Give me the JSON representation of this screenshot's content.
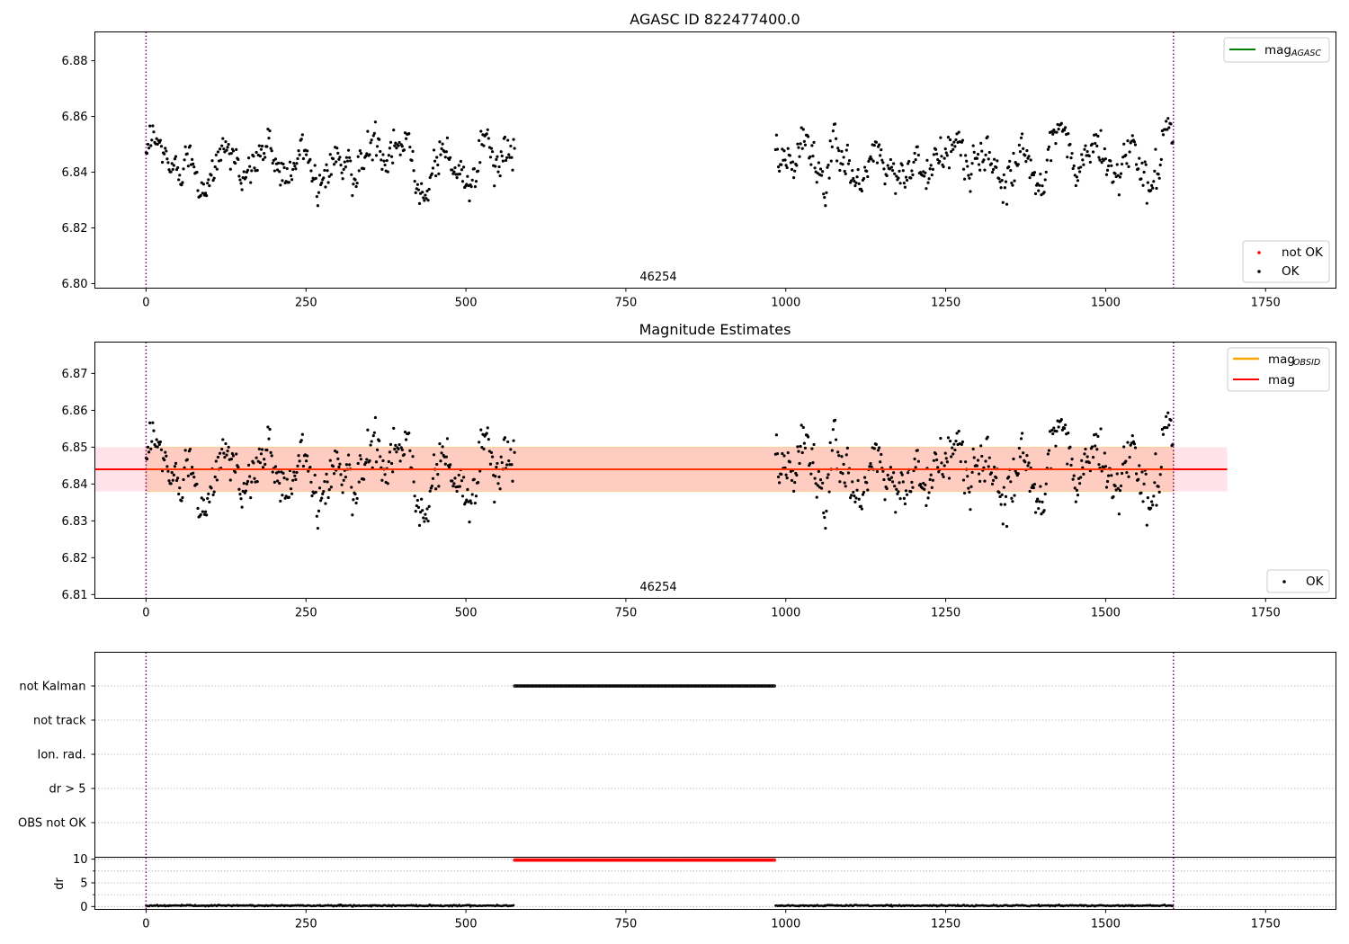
{
  "figure": {
    "colors": {
      "ok": "#000000",
      "not_ok": "#ff0000",
      "mag_agasc": "#008000",
      "mag_obsid": "#ffa500",
      "mag": "#ff0000",
      "obs_band": "#ffa07a",
      "mean_band": "#ffc0cb",
      "obs_boundary": "#800080",
      "grid": "#b0b0b0",
      "flag": "#000000",
      "dr_high": "#ff0000"
    }
  },
  "chart_data": [
    {
      "id": "agasc",
      "type": "scatter",
      "title": "AGASC ID 822477400.0",
      "xlim": [
        -80,
        1860
      ],
      "ylim": [
        6.79838,
        6.89036
      ],
      "x_ticks": [
        0,
        250,
        500,
        750,
        1000,
        1250,
        1500,
        1750
      ],
      "y_ticks": [
        6.8,
        6.82,
        6.84,
        6.86,
        6.88
      ],
      "y_tick_labels": [
        "6.80",
        "6.82",
        "6.84",
        "6.86",
        "6.88"
      ],
      "obs_boundaries": [
        0,
        1606
      ],
      "obs_label": {
        "text": "46254",
        "x": 803
      },
      "legend_upper": [
        {
          "label": "mag",
          "sub": "AGASC",
          "kind": "line",
          "color": "#008000"
        }
      ],
      "legend_lower": [
        {
          "label": "not OK",
          "kind": "point",
          "color": "#ff0000"
        },
        {
          "label": "OK",
          "kind": "point",
          "color": "#000000"
        }
      ],
      "series": [
        {
          "label": "OK",
          "kind": "scatter",
          "segments": [
            [
              0,
              576
            ],
            [
              984,
              1606
            ]
          ],
          "mean": 6.844,
          "spread": 0.0058,
          "min": 6.828,
          "max": 6.861
        },
        {
          "label": "not OK",
          "kind": "scatter",
          "values": []
        }
      ]
    },
    {
      "id": "estimates",
      "type": "scatter",
      "title": "Magnitude Estimates",
      "xlim": [
        -80,
        1860
      ],
      "ylim": [
        6.80898,
        6.87852
      ],
      "x_ticks": [
        0,
        250,
        500,
        750,
        1000,
        1250,
        1500,
        1750
      ],
      "y_ticks": [
        6.81,
        6.82,
        6.83,
        6.84,
        6.85,
        6.86,
        6.87
      ],
      "y_tick_labels": [
        "6.81",
        "6.82",
        "6.83",
        "6.84",
        "6.85",
        "6.86",
        "6.87"
      ],
      "obs_boundaries": [
        0,
        1606
      ],
      "obs_label": {
        "text": "46254",
        "x": 803
      },
      "mag": 6.844,
      "mag_band": {
        "x": [
          -80,
          1690
        ],
        "y": [
          6.838,
          6.85
        ]
      },
      "obs_band": {
        "x": [
          0,
          1606
        ],
        "y": [
          6.838,
          6.85
        ]
      },
      "legend_upper": [
        {
          "label": "mag",
          "sub": "OBSID",
          "kind": "line",
          "color": "#ffa500"
        },
        {
          "label": "mag",
          "sub": "",
          "kind": "line",
          "color": "#ff0000"
        }
      ],
      "legend_lower": [
        {
          "label": "OK",
          "kind": "point",
          "color": "#000000"
        }
      ],
      "series": [
        {
          "label": "OK",
          "kind": "scatter",
          "segments": [
            [
              0,
              576
            ],
            [
              984,
              1606
            ]
          ],
          "mean": 6.844,
          "spread": 0.0058,
          "min": 6.828,
          "max": 6.861
        }
      ]
    },
    {
      "id": "flags",
      "type": "scatter",
      "xlim": [
        -80,
        1860
      ],
      "categories": [
        "not Kalman",
        "not track",
        "Ion. rad.",
        "dr > 5",
        "OBS not OK"
      ],
      "obs_boundaries": [
        0,
        1606
      ],
      "series": [
        {
          "category": "not Kalman",
          "x_range": [
            576,
            984
          ]
        },
        {
          "category": "not track",
          "x_range": []
        },
        {
          "category": "Ion. rad.",
          "x_range": []
        },
        {
          "category": "dr > 5",
          "x_range": []
        },
        {
          "category": "OBS not OK",
          "x_range": []
        }
      ]
    },
    {
      "id": "dr",
      "type": "scatter",
      "ylabel": "dr",
      "xlim": [
        -80,
        1860
      ],
      "ylim": [
        -0.6,
        10.4
      ],
      "x_ticks": [
        0,
        250,
        500,
        750,
        1000,
        1250,
        1500,
        1750
      ],
      "y_ticks": [
        0,
        5,
        10
      ],
      "y_minor_ticks": [
        2.5,
        7.5
      ],
      "obs_boundaries": [
        0,
        1606
      ],
      "series": [
        {
          "label": "dr",
          "kind": "scatter",
          "segments": [
            [
              0,
              576
            ],
            [
              984,
              1606
            ]
          ],
          "value": 0.2,
          "spread": 0.12
        },
        {
          "label": "dr (clipped)",
          "kind": "scatter",
          "segments": [
            [
              576,
              984
            ]
          ],
          "value": 9.8
        }
      ]
    }
  ]
}
